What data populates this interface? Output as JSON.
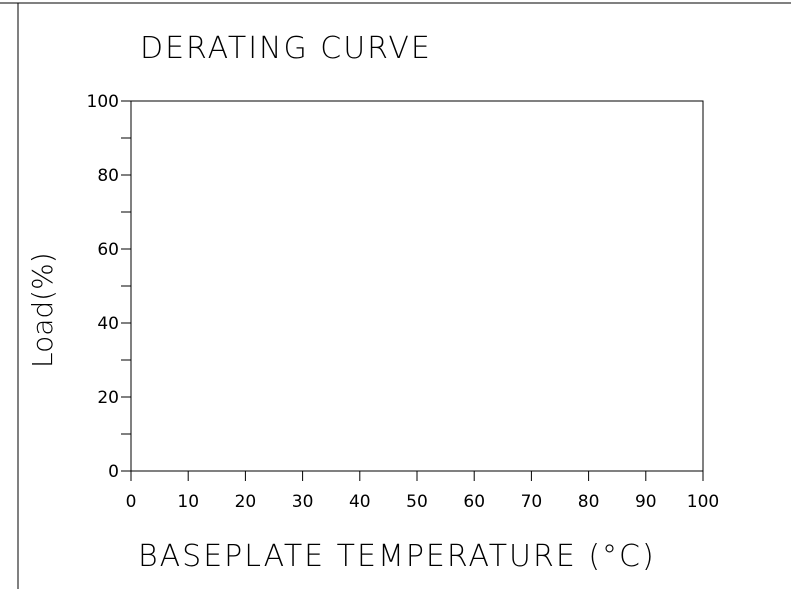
{
  "chart_data": {
    "type": "line",
    "title": "DERATING CURVE",
    "xlabel": "BASEPLATE TEMPERATURE (°C)",
    "ylabel": "Load(%)",
    "xlim": [
      0,
      100
    ],
    "ylim": [
      0,
      100
    ],
    "x_major_ticks": [
      0,
      10,
      20,
      30,
      40,
      50,
      60,
      70,
      80,
      90,
      100
    ],
    "x_tick_labels": [
      "0",
      "10",
      "20",
      "30",
      "40",
      "50",
      "60",
      "70",
      "80",
      "90",
      "100"
    ],
    "y_major_ticks": [
      0,
      20,
      40,
      60,
      80,
      100
    ],
    "y_tick_labels": [
      "0",
      "20",
      "40",
      "60",
      "80",
      "100"
    ],
    "y_minor_ticks": [
      10,
      30,
      50,
      70,
      90
    ],
    "grid": false,
    "series": []
  }
}
